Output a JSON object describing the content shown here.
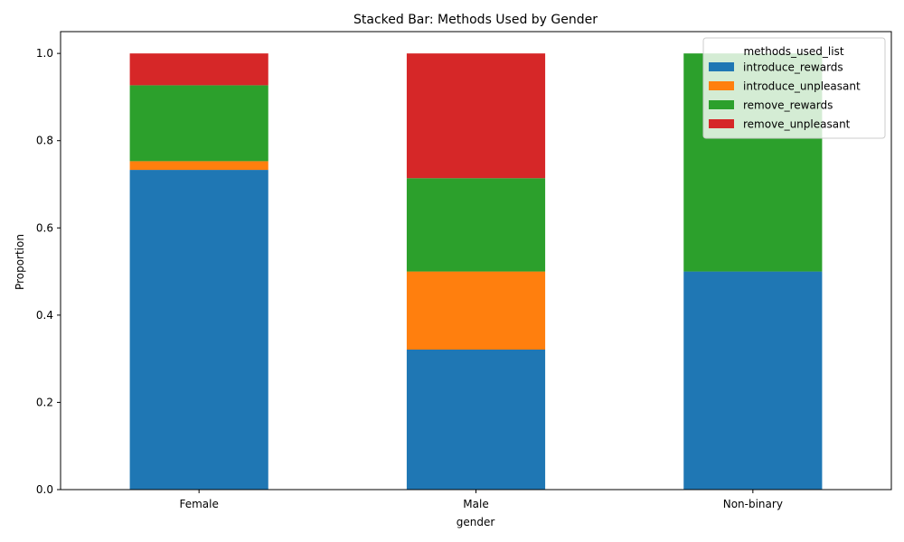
{
  "chart_data": {
    "type": "bar",
    "stacked": true,
    "title": "Stacked Bar: Methods Used by Gender",
    "xlabel": "gender",
    "ylabel": "Proportion",
    "categories": [
      "Female",
      "Male",
      "Non-binary"
    ],
    "ylim": [
      0,
      1.05
    ],
    "yticks": [
      "0.0",
      "0.2",
      "0.4",
      "0.6",
      "0.8",
      "1.0"
    ],
    "grid": false,
    "legend": {
      "title": "methods_used_list",
      "placement": "top-right"
    },
    "series": [
      {
        "name": "introduce_rewards",
        "color": "#1f77b4",
        "values": [
          0.733,
          0.321,
          0.5
        ]
      },
      {
        "name": "introduce_unpleasant",
        "color": "#ff7f0e",
        "values": [
          0.02,
          0.179,
          0.0
        ]
      },
      {
        "name": "remove_rewards",
        "color": "#2ca02c",
        "values": [
          0.174,
          0.214,
          0.5
        ]
      },
      {
        "name": "remove_unpleasant",
        "color": "#d62728",
        "values": [
          0.073,
          0.286,
          0.0
        ]
      }
    ]
  }
}
